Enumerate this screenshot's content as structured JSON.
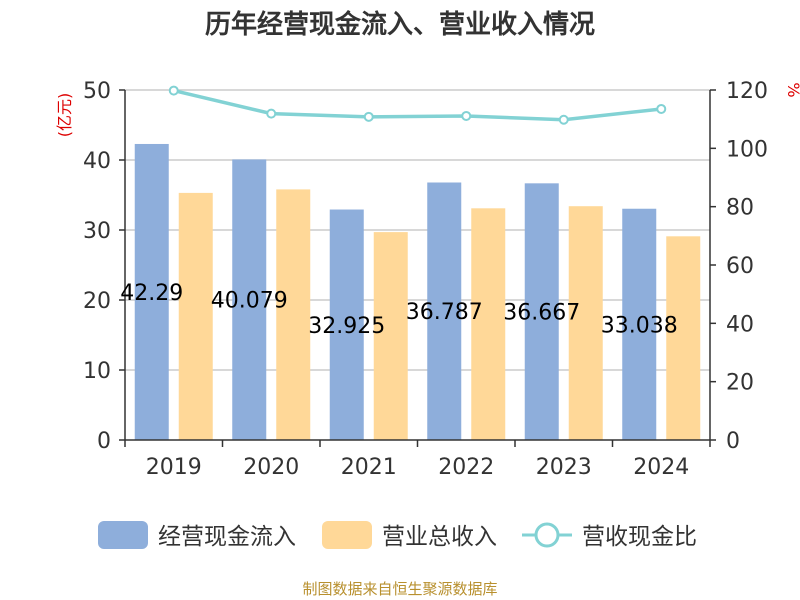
{
  "title": "历年经营现金流入、营业收入情况",
  "footer": "制图数据来自恒生聚源数据库",
  "colors": {
    "cash_inflow": "#8eaedb",
    "revenue": "#ffd898",
    "ratio": "#82d2d4",
    "axis_unit": "#dd0000",
    "grid": "#cccccc",
    "axis": "#333333",
    "text": "#333333"
  },
  "chart_data": {
    "type": "bar",
    "categories": [
      "2019",
      "2020",
      "2021",
      "2022",
      "2023",
      "2024"
    ],
    "series": [
      {
        "name": "经营现金流入",
        "type": "bar",
        "axis": "left",
        "values": [
          42.29,
          40.079,
          32.925,
          36.787,
          36.667,
          33.038
        ],
        "labels": [
          "42.29",
          "40.079",
          "32.925",
          "36.787",
          "36.667",
          "33.038"
        ]
      },
      {
        "name": "营业总收入",
        "type": "bar",
        "axis": "left",
        "values": [
          35.3,
          35.8,
          29.7,
          33.1,
          33.4,
          29.1
        ]
      },
      {
        "name": "营收现金比",
        "type": "line",
        "axis": "right",
        "values": [
          119.8,
          111.9,
          110.8,
          111.1,
          109.8,
          113.5
        ]
      }
    ],
    "y_left": {
      "unit": "(亿元)",
      "ylim": [
        0,
        50
      ],
      "ticks": [
        "0",
        "10",
        "20",
        "30",
        "40",
        "50"
      ]
    },
    "y_right": {
      "unit": "%",
      "ylim": [
        0,
        120
      ],
      "ticks": [
        "0",
        "20",
        "40",
        "60",
        "80",
        "100",
        "120"
      ]
    },
    "grid": true,
    "legend": "bottom"
  }
}
